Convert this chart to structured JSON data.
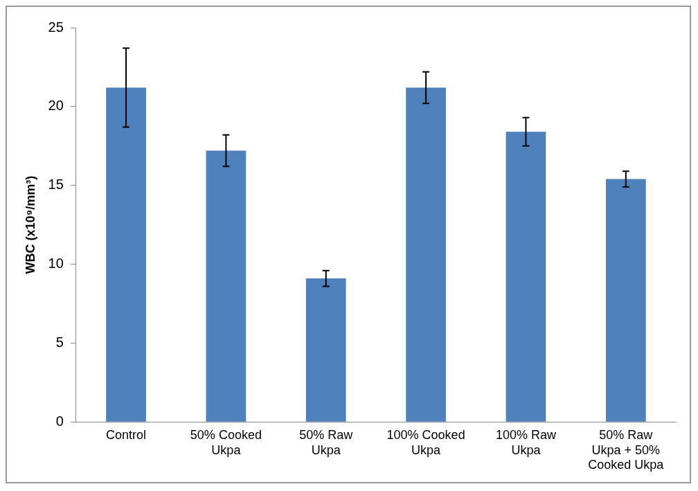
{
  "chart_data": {
    "type": "bar",
    "ylabel": "WBC (x10⁹/mm³)",
    "categories": [
      "Control",
      "50% Cooked Ukpa",
      "50% Raw Ukpa",
      "100% Cooked Ukpa",
      "100% Raw Ukpa",
      "50% Raw Ukpa + 50% Cooked Ukpa"
    ],
    "values": [
      21.2,
      17.2,
      9.1,
      21.2,
      18.4,
      15.4
    ],
    "errors": [
      2.5,
      1.0,
      0.5,
      1.0,
      0.9,
      0.5
    ],
    "color": "#4f81bd",
    "ylim": [
      0,
      25
    ],
    "yticks": [
      0,
      5,
      10,
      15,
      20,
      25
    ],
    "grid": false,
    "legend": false
  }
}
